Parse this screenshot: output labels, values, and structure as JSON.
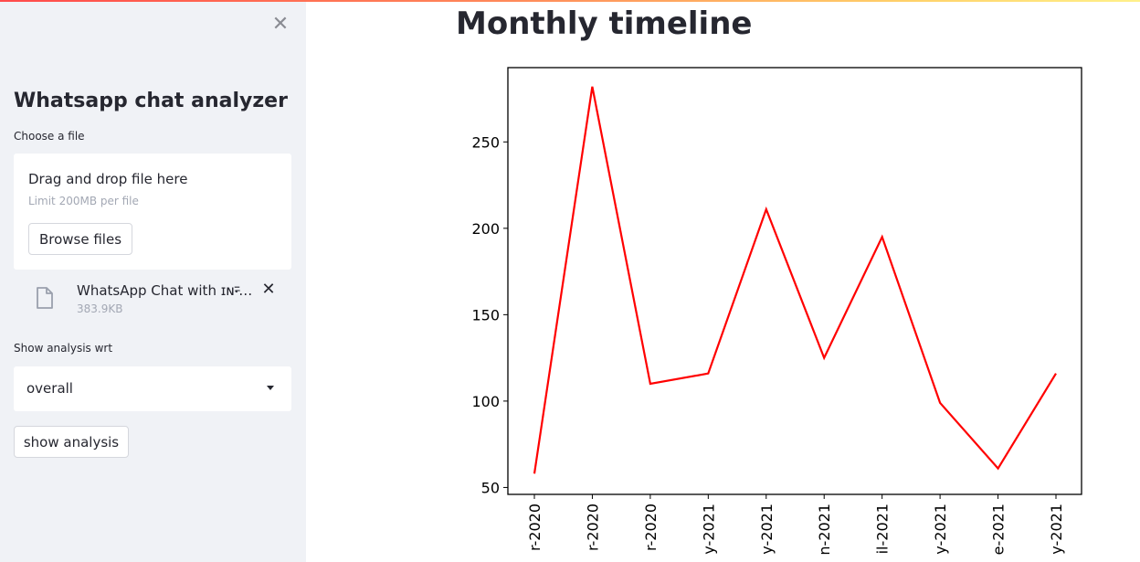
{
  "sidebar": {
    "close_icon": "✕",
    "title": "Whatsapp chat analyzer",
    "file_label": "Choose a file",
    "dropzone": {
      "main_text": "Drag and drop file here",
      "limit_text": "Limit 200MB per file",
      "browse_label": "Browse files"
    },
    "uploaded_file": {
      "name": "WhatsApp Chat with ɪɴन्यू...",
      "size": "383.9KB",
      "remove_icon": "✕"
    },
    "analysis_label": "Show analysis wrt",
    "select": {
      "value": "overall"
    },
    "show_button_label": "show analysis"
  },
  "main": {
    "title": "Monthly timeline"
  },
  "colors": {
    "line": "#ff0000",
    "sidebar_bg": "#f0f2f6",
    "text": "#262730"
  },
  "chart_data": {
    "type": "line",
    "title": "",
    "xlabel": "",
    "ylabel": "",
    "categories": [
      "r-2020",
      "r-2020",
      "r-2020",
      "y-2021",
      "y-2021",
      "n-2021",
      "il-2021",
      "y-2021",
      "e-2021",
      "y-2021"
    ],
    "values": [
      58,
      282,
      110,
      116,
      211,
      125,
      195,
      99,
      61,
      116
    ],
    "yticks": [
      50,
      100,
      150,
      200,
      250
    ],
    "ylim": [
      46,
      293
    ],
    "grid": false,
    "color": "#ff0000"
  }
}
